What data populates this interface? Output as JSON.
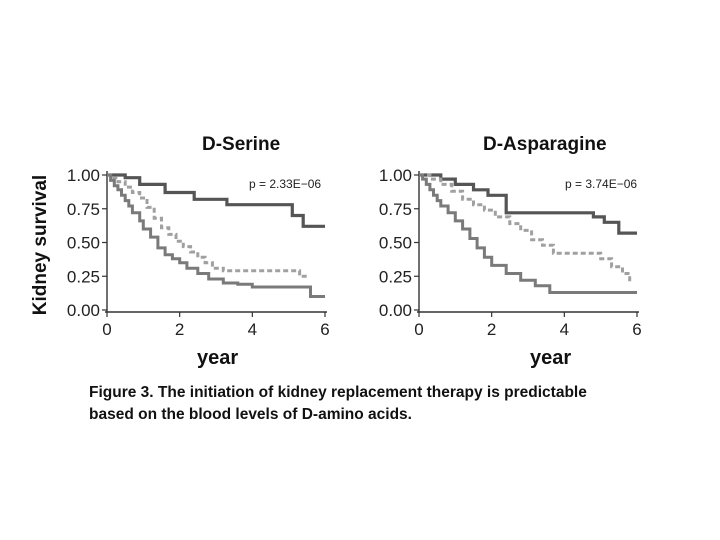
{
  "ylabel": "Kidney survival",
  "xlabel": "year",
  "caption": {
    "line1": "Figure 3. The initiation of kidney replacement therapy is predictable",
    "line2": "based on the blood levels of D-amino acids."
  },
  "colors": {
    "high": "#555555",
    "middle": "#a0a0a0",
    "low": "#7a7a7a",
    "axis": "#333333"
  },
  "chart_data": [
    {
      "type": "line",
      "title": "D-Serine",
      "annotation": "p = 2.33E−06",
      "xlim": [
        0,
        6
      ],
      "ylim": [
        0,
        1
      ],
      "x_ticks": [
        "0",
        "2",
        "4",
        "6"
      ],
      "y_ticks": [
        "0.00",
        "0.25",
        "0.50",
        "0.75",
        "1.00"
      ],
      "series": [
        {
          "style": "solid-dark",
          "x": [
            0,
            0.5,
            0.9,
            1.6,
            2.4,
            3.3,
            5.1,
            5.4,
            6.0
          ],
          "y": [
            1.0,
            0.98,
            0.93,
            0.87,
            0.82,
            0.78,
            0.7,
            0.62,
            0.62
          ]
        },
        {
          "style": "dashed",
          "x": [
            0,
            0.1,
            0.3,
            0.5,
            0.7,
            0.9,
            1.1,
            1.3,
            1.5,
            1.7,
            1.9,
            2.1,
            2.3,
            2.5,
            2.7,
            2.9,
            3.2,
            5.0,
            5.3,
            5.5
          ],
          "y": [
            1.0,
            0.98,
            0.95,
            0.91,
            0.87,
            0.83,
            0.76,
            0.68,
            0.61,
            0.56,
            0.51,
            0.47,
            0.43,
            0.39,
            0.35,
            0.31,
            0.29,
            0.29,
            0.25,
            0.25
          ]
        },
        {
          "style": "solid-light",
          "x": [
            0,
            0.1,
            0.2,
            0.3,
            0.4,
            0.5,
            0.6,
            0.7,
            0.9,
            1.0,
            1.2,
            1.4,
            1.6,
            1.8,
            2.0,
            2.2,
            2.5,
            2.8,
            3.2,
            3.6,
            4.0,
            5.0,
            5.6,
            6.0
          ],
          "y": [
            1.0,
            0.96,
            0.92,
            0.89,
            0.85,
            0.81,
            0.77,
            0.72,
            0.66,
            0.6,
            0.54,
            0.46,
            0.41,
            0.38,
            0.35,
            0.31,
            0.27,
            0.23,
            0.2,
            0.19,
            0.17,
            0.17,
            0.1,
            0.1
          ]
        }
      ]
    },
    {
      "type": "line",
      "title": "D-Asparagine",
      "annotation": "p = 3.74E−06",
      "xlim": [
        0,
        6
      ],
      "ylim": [
        0,
        1
      ],
      "x_ticks": [
        "0",
        "2",
        "4",
        "6"
      ],
      "y_ticks": [
        "0.00",
        "0.25",
        "0.50",
        "0.75",
        "1.00"
      ],
      "series": [
        {
          "style": "solid-dark",
          "x": [
            0,
            0.6,
            1.0,
            1.5,
            1.9,
            2.4,
            4.4,
            4.8,
            5.1,
            5.5,
            6.0
          ],
          "y": [
            1.0,
            0.97,
            0.93,
            0.89,
            0.85,
            0.72,
            0.72,
            0.69,
            0.65,
            0.57,
            0.57
          ]
        },
        {
          "style": "dashed",
          "x": [
            0,
            0.3,
            0.6,
            0.9,
            1.2,
            1.5,
            1.8,
            2.1,
            2.5,
            2.8,
            3.1,
            3.4,
            3.7,
            5.0,
            5.3,
            5.6,
            5.8
          ],
          "y": [
            1.0,
            0.97,
            0.93,
            0.88,
            0.82,
            0.78,
            0.74,
            0.69,
            0.64,
            0.59,
            0.52,
            0.48,
            0.42,
            0.38,
            0.32,
            0.27,
            0.2
          ]
        },
        {
          "style": "solid-light",
          "x": [
            0,
            0.1,
            0.2,
            0.3,
            0.4,
            0.5,
            0.6,
            0.8,
            1.0,
            1.2,
            1.4,
            1.6,
            1.8,
            2.0,
            2.4,
            2.8,
            3.2,
            3.6,
            6.0
          ],
          "y": [
            1.0,
            0.97,
            0.93,
            0.89,
            0.85,
            0.81,
            0.77,
            0.72,
            0.66,
            0.6,
            0.53,
            0.46,
            0.39,
            0.33,
            0.27,
            0.22,
            0.18,
            0.13,
            0.13
          ]
        }
      ]
    }
  ]
}
